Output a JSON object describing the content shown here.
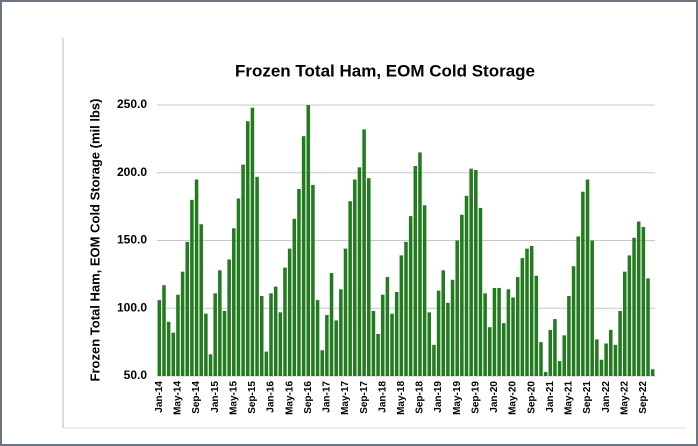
{
  "chart_data": {
    "type": "bar",
    "title": "Frozen Total Ham, EOM Cold Storage",
    "y_label": "Frozen Total Ham, EOM Cold Storage (mil lbs)",
    "categories": [
      "Jan-14",
      null,
      null,
      null,
      "May-14",
      null,
      null,
      null,
      "Sep-14",
      null,
      null,
      null,
      "Jan-15",
      null,
      null,
      null,
      "May-15",
      null,
      null,
      null,
      "Sep-15",
      null,
      null,
      null,
      "Jan-16",
      null,
      null,
      null,
      "May-16",
      null,
      null,
      null,
      "Sep-16",
      null,
      null,
      null,
      "Jan-17",
      null,
      null,
      null,
      "May-17",
      null,
      null,
      null,
      "Sep-17",
      null,
      null,
      null,
      "Jan-18",
      null,
      null,
      null,
      "May-18",
      null,
      null,
      null,
      "Sep-18",
      null,
      null,
      null,
      "Jan-19",
      null,
      null,
      null,
      "May-19",
      null,
      null,
      null,
      "Sep-19",
      null,
      null,
      null,
      "Jan-20",
      null,
      null,
      null,
      "May-20",
      null,
      null,
      null,
      "Sep-20",
      null,
      null,
      null,
      "Jan-21",
      null,
      null,
      null,
      "May-21",
      null,
      null,
      null,
      "Sep-21",
      null,
      null,
      null,
      "Jan-22",
      null,
      null,
      null,
      "May-22",
      null,
      null,
      null,
      "Sep-22",
      null,
      null
    ],
    "values": [
      106,
      117,
      90,
      82,
      110,
      127,
      149,
      180,
      195,
      162,
      96,
      66,
      111,
      128,
      98,
      136,
      159,
      181,
      206,
      238,
      248,
      197,
      109,
      68,
      111,
      116,
      97,
      130,
      144,
      166,
      188,
      227,
      250,
      191,
      106,
      69,
      95,
      126,
      91,
      114,
      144,
      179,
      195,
      204,
      232,
      196,
      98,
      81,
      110,
      123,
      96,
      112,
      139,
      149,
      168,
      205,
      215,
      176,
      97,
      73,
      113,
      128,
      104,
      121,
      150,
      169,
      183,
      203,
      202,
      174,
      111,
      86,
      115,
      115,
      89,
      114,
      108,
      123,
      137,
      144,
      146,
      124,
      75,
      53,
      84,
      92,
      61,
      80,
      109,
      131,
      153,
      186,
      195,
      150,
      77,
      62,
      74,
      84,
      73,
      98,
      127,
      139,
      152,
      164,
      160,
      122,
      55
    ],
    "color": "#237b1f",
    "ylim": [
      50,
      250
    ],
    "yticks": [
      {
        "value": 50,
        "label": "50.0"
      },
      {
        "value": 100,
        "label": "100.0"
      },
      {
        "value": 150,
        "label": "150.0"
      },
      {
        "value": 200,
        "label": "200.0"
      },
      {
        "value": 250,
        "label": "250.0"
      }
    ],
    "grid": true
  }
}
